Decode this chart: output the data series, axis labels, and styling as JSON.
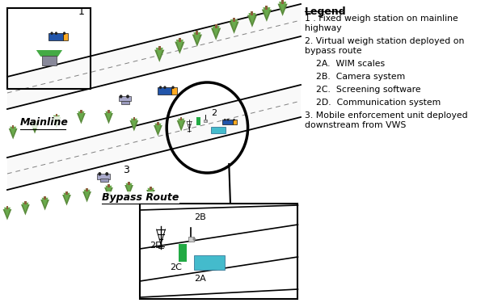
{
  "background_color": "#ffffff",
  "legend_title": "Legend",
  "legend_items": [
    "1 . Fixed weigh station on mainline\nhighway",
    "2. Virtual weigh station deployed on\nbypass route",
    "    2A.  WIM scales",
    "    2B.  Camera system",
    "    2C.  Screening software",
    "    2D.  Communication system",
    "3. Mobile enforcement unit deployed\ndownstream from VWS"
  ],
  "mainline_label": "Mainline",
  "bypass_label": "Bypass Route",
  "label1": "1",
  "label2": "2",
  "label3": "3",
  "label2A": "2A",
  "label2B": "2B",
  "label2C": "2C",
  "label2D": "2D",
  "tree_color1": "#5a8a3c",
  "tree_color2": "#6aaa4c",
  "trunk_color": "#8B5E3C",
  "truck_trailer_color": "#2255aa",
  "truck_cab_color": "#ffaa22",
  "wim_color": "#44bbcc",
  "screen_color": "#22aa44",
  "road_color": "#f0f0f0",
  "tower_color": "#333333",
  "camera_color": "#cccccc"
}
